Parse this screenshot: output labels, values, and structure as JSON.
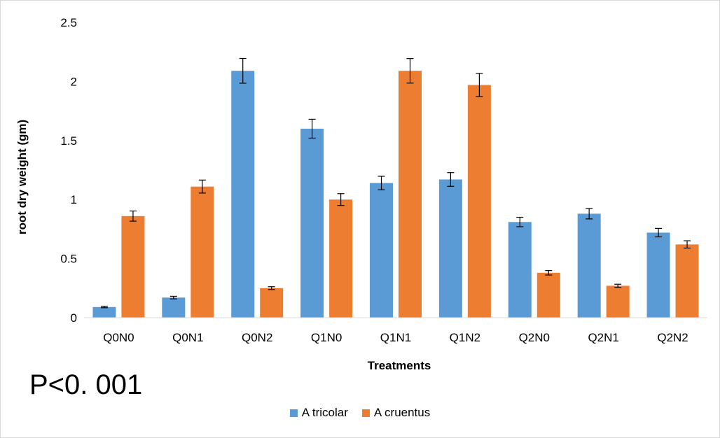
{
  "chart_data": {
    "type": "bar",
    "title": "",
    "xlabel": "Treatments",
    "ylabel": "root dry weight (gm)",
    "ylim": [
      0,
      2.5
    ],
    "yticks": [
      "0",
      "0.5",
      "1",
      "1.5",
      "2",
      "2.5"
    ],
    "categories": [
      "Q0N0",
      "Q0N1",
      "Q0N2",
      "Q1N0",
      "Q1N1",
      "Q1N2",
      "Q2N0",
      "Q2N1",
      "Q2N2"
    ],
    "series": [
      {
        "name": "A tricolar",
        "color": "#5b9bd5",
        "values": [
          0.09,
          0.17,
          2.09,
          1.6,
          1.14,
          1.17,
          0.81,
          0.88,
          0.72
        ],
        "errors": [
          0.006,
          0.011,
          0.105,
          0.08,
          0.057,
          0.058,
          0.04,
          0.044,
          0.036
        ]
      },
      {
        "name": "A cruentus",
        "color": "#ed7d31",
        "values": [
          0.86,
          1.11,
          0.25,
          1.0,
          2.09,
          1.97,
          0.38,
          0.27,
          0.62
        ],
        "errors": [
          0.043,
          0.055,
          0.012,
          0.05,
          0.104,
          0.098,
          0.019,
          0.013,
          0.031
        ]
      }
    ],
    "grid": false,
    "legend_position": "bottom",
    "annotation": "P<0. 001"
  }
}
